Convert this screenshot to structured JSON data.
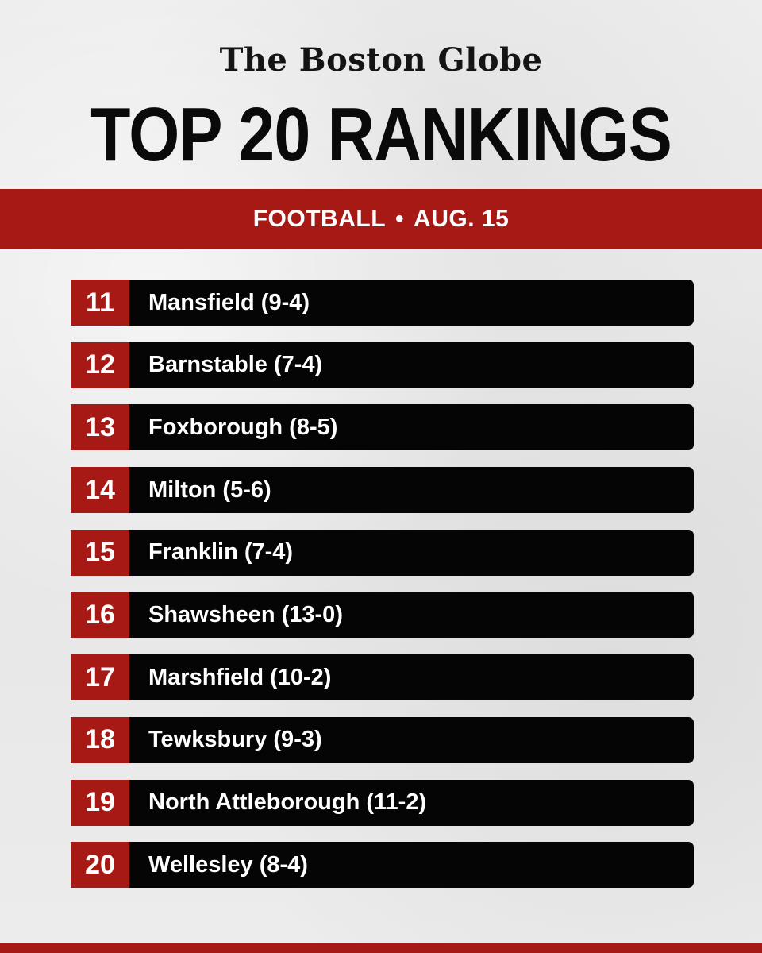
{
  "masthead": "The Boston Globe",
  "headline": "TOP 20 RANKINGS",
  "band": {
    "sport": "FOOTBALL",
    "separator": "•",
    "date": "AUG. 15"
  },
  "rankings": [
    {
      "rank": "11",
      "team": "Mansfield (9-4)"
    },
    {
      "rank": "12",
      "team": "Barnstable (7-4)"
    },
    {
      "rank": "13",
      "team": "Foxborough (8-5)"
    },
    {
      "rank": "14",
      "team": "Milton (5-6)"
    },
    {
      "rank": "15",
      "team": "Franklin (7-4)"
    },
    {
      "rank": "16",
      "team": "Shawsheen (13-0)"
    },
    {
      "rank": "17",
      "team": "Marshfield (10-2)"
    },
    {
      "rank": "18",
      "team": "Tewksbury (9-3)"
    },
    {
      "rank": "19",
      "team": "North Attleborough (11-2)"
    },
    {
      "rank": "20",
      "team": "Wellesley (8-4)"
    }
  ],
  "colors": {
    "accent_red": "#a71915",
    "row_black": "#050505",
    "background": "#e9e9e9"
  }
}
